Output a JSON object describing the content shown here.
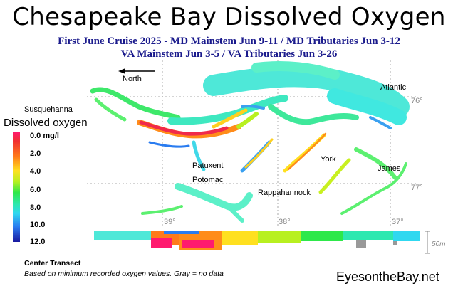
{
  "header": {
    "title": "Chesapeake Bay Dissolved Oxygen",
    "subtitle_line1": "First June Cruise 2025 - MD Mainstem Jun 9-11 / MD Tributaries Jun 3-12",
    "subtitle_line2": "VA Mainstem Jun 3-5 /  VA Tributaries Jun 3-26"
  },
  "map": {
    "north_label": "North",
    "place_labels": {
      "susquehanna": "Susquehanna",
      "atlantic": "Atlantic",
      "patuxent": "Patuxent",
      "potomac": "Potomac",
      "york": "York",
      "james": "James",
      "rappahannock": "Rappahannock"
    },
    "coordinates": {
      "lat_76": "76°",
      "lat_77": "77°",
      "lon_39": "39°",
      "lon_38": "38°",
      "lon_37": "37°"
    }
  },
  "legend": {
    "title": "Dissolved oxygen",
    "ticks": [
      "0.0 mg/l",
      "2.0",
      "4.0",
      "6.0",
      "8.0",
      "10.0",
      "12.0"
    ],
    "colors": {
      "low": "#ff1a6e",
      "mid": "#2ee84a",
      "high": "#1a1aa0",
      "no_data": "#999999"
    }
  },
  "transect": {
    "label": "Center Transect",
    "depth_label": "50m"
  },
  "footer": {
    "note": "Based on minimum recorded oxygen values. Gray = no data",
    "brand": "EyesontheBay.net"
  }
}
